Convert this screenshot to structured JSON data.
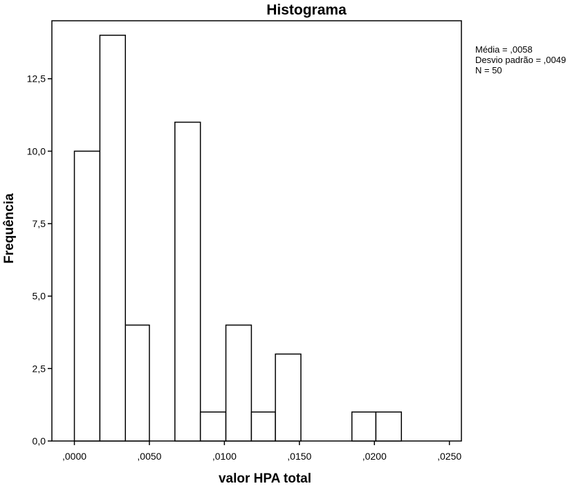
{
  "chart_data": {
    "type": "bar",
    "title": "Histograma",
    "xlabel": "valor HPA total",
    "ylabel": "Frequência",
    "xlim": [
      -0.0015,
      0.0258
    ],
    "ylim": [
      0,
      14.5
    ],
    "x_ticks": [
      {
        "value": 0.0,
        "label": ",0000"
      },
      {
        "value": 0.005,
        "label": ",0050"
      },
      {
        "value": 0.01,
        "label": ",0100"
      },
      {
        "value": 0.015,
        "label": ",0150"
      },
      {
        "value": 0.02,
        "label": ",0200"
      },
      {
        "value": 0.025,
        "label": ",0250"
      }
    ],
    "y_ticks": [
      {
        "value": 0.0,
        "label": "0,0"
      },
      {
        "value": 2.5,
        "label": "2,5"
      },
      {
        "value": 5.0,
        "label": "5,0"
      },
      {
        "value": 7.5,
        "label": "7,5"
      },
      {
        "value": 10.0,
        "label": "10,0"
      },
      {
        "value": 12.5,
        "label": "12,5"
      }
    ],
    "bins": [
      {
        "start": 0.0,
        "end": 0.0017,
        "count": 10
      },
      {
        "start": 0.0017,
        "end": 0.0034,
        "count": 14
      },
      {
        "start": 0.0034,
        "end": 0.005,
        "count": 4
      },
      {
        "start": 0.005,
        "end": 0.0067,
        "count": 0
      },
      {
        "start": 0.0067,
        "end": 0.0084,
        "count": 11
      },
      {
        "start": 0.0084,
        "end": 0.0101,
        "count": 1
      },
      {
        "start": 0.0101,
        "end": 0.0118,
        "count": 4
      },
      {
        "start": 0.0118,
        "end": 0.0134,
        "count": 1
      },
      {
        "start": 0.0134,
        "end": 0.0151,
        "count": 3
      },
      {
        "start": 0.0151,
        "end": 0.0168,
        "count": 0
      },
      {
        "start": 0.0168,
        "end": 0.0185,
        "count": 0
      },
      {
        "start": 0.0185,
        "end": 0.0201,
        "count": 1
      },
      {
        "start": 0.0201,
        "end": 0.0218,
        "count": 1
      }
    ],
    "grid": false,
    "bar_fill": "#ffffff",
    "bar_stroke": "#000000",
    "stats": {
      "mean": "Média = ,0058",
      "std": "Desvio padrão = ,0049",
      "n": "N = 50"
    }
  }
}
